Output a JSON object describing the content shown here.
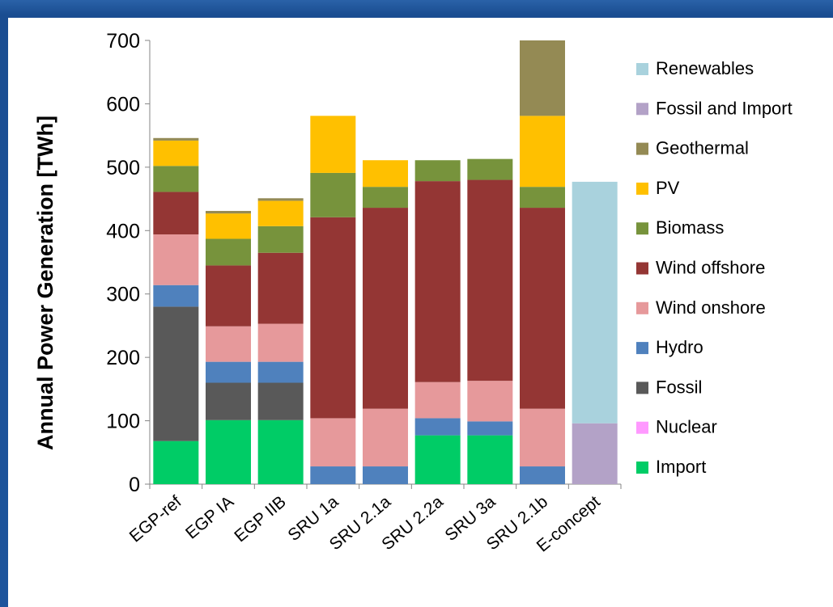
{
  "chart_data": {
    "type": "bar",
    "stacked": true,
    "title": "",
    "xlabel": "",
    "ylabel": "Annual Power Generation [TWh]",
    "ylim": [
      0,
      700
    ],
    "yticks": [
      0,
      100,
      200,
      300,
      400,
      500,
      600,
      700
    ],
    "grid": false,
    "legend_position": "right",
    "categories": [
      "EGP-ref",
      "EGP IA",
      "EGP IIB",
      "SRU 1a",
      "SRU 2.1a",
      "SRU 2.2a",
      "SRU 3a",
      "SRU 2.1b",
      "E-concept"
    ],
    "series": [
      {
        "name": "Import",
        "color": "#00cc66",
        "values": [
          68,
          101,
          101,
          0,
          0,
          77,
          77,
          0,
          0
        ]
      },
      {
        "name": "Nuclear",
        "color": "#ff99ff",
        "values": [
          0,
          0,
          0,
          0,
          0,
          0,
          0,
          0,
          0
        ]
      },
      {
        "name": "Fossil",
        "color": "#595959",
        "values": [
          212,
          59,
          59,
          0,
          0,
          0,
          0,
          0,
          0
        ]
      },
      {
        "name": "Hydro",
        "color": "#4f81bd",
        "values": [
          34,
          33,
          33,
          28,
          28,
          27,
          22,
          28,
          0
        ]
      },
      {
        "name": "Wind onshore",
        "color": "#e6999b",
        "values": [
          80,
          56,
          60,
          76,
          91,
          57,
          64,
          91,
          0
        ]
      },
      {
        "name": "Wind offshore",
        "color": "#943634",
        "values": [
          67,
          96,
          112,
          317,
          317,
          317,
          317,
          317,
          0
        ]
      },
      {
        "name": "Biomass",
        "color": "#77933c",
        "values": [
          41,
          42,
          42,
          70,
          33,
          33,
          33,
          33,
          0
        ]
      },
      {
        "name": "PV",
        "color": "#ffc000",
        "values": [
          40,
          40,
          40,
          90,
          42,
          0,
          0,
          112,
          0
        ]
      },
      {
        "name": "Geothermal",
        "color": "#948a54",
        "values": [
          4,
          4,
          4,
          0,
          0,
          0,
          0,
          119,
          0
        ]
      },
      {
        "name": "Fossil and Import",
        "color": "#b3a2c7",
        "values": [
          0,
          0,
          0,
          0,
          0,
          0,
          0,
          0,
          96
        ]
      },
      {
        "name": "Renewables",
        "color": "#a9d2dd",
        "values": [
          0,
          0,
          0,
          0,
          0,
          0,
          0,
          0,
          381
        ]
      }
    ]
  },
  "legend_order": [
    "Renewables",
    "Fossil and Import",
    "Geothermal",
    "PV",
    "Biomass",
    "Wind offshore",
    "Wind onshore",
    "Hydro",
    "Fossil",
    "Nuclear",
    "Import"
  ]
}
